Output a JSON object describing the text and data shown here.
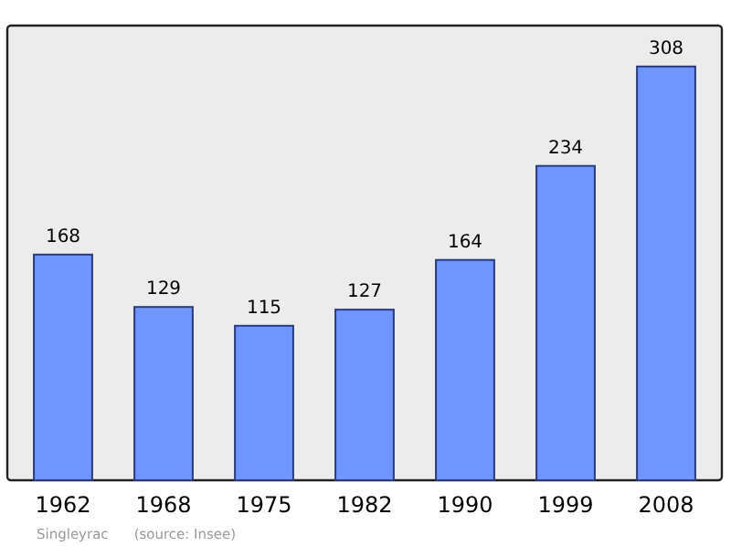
{
  "chart_data": {
    "type": "bar",
    "categories": [
      "1962",
      "1968",
      "1975",
      "1982",
      "1990",
      "1999",
      "2008"
    ],
    "values": [
      168,
      129,
      115,
      127,
      164,
      234,
      308
    ],
    "color": "#6f96ff",
    "data_labels": true,
    "annotations": [
      "Singleyrac",
      "(source: Insee)"
    ]
  }
}
